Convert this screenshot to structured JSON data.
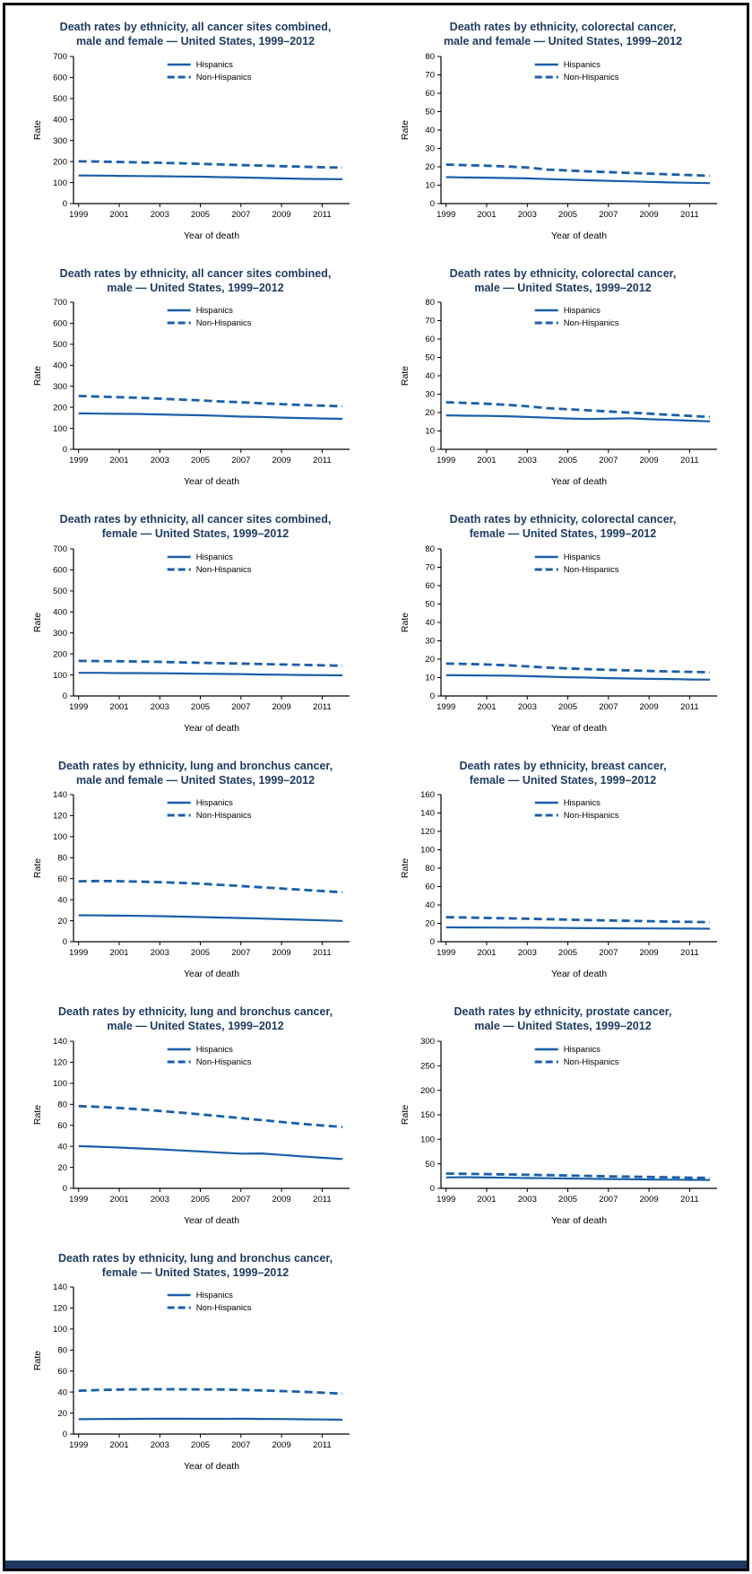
{
  "page": {
    "background": "#ffffff",
    "border_color": "#000000",
    "footer_bar_color": "#1f3864"
  },
  "style": {
    "line_color": "#1a5fa8",
    "title_color": "#1f3c61",
    "axis_color": "#000000",
    "tick_label_color": "#000000"
  },
  "legend": {
    "items": [
      {
        "label": "Hispanics",
        "style": "solid"
      },
      {
        "label": "Non-Hispanics",
        "style": "dashed"
      }
    ]
  },
  "axis_defaults": {
    "xlabel": "Year of death",
    "ylabel": "Rate",
    "years": [
      1999,
      2000,
      2001,
      2002,
      2003,
      2004,
      2005,
      2006,
      2007,
      2008,
      2009,
      2010,
      2011,
      2012
    ],
    "x_tick_labels": [
      "1999",
      "2001",
      "2003",
      "2005",
      "2007",
      "2009",
      "2011"
    ]
  },
  "chart_data": [
    {
      "type": "line",
      "title_line1": "Death rates by ethnicity, all cancer sites combined,",
      "title_line2": "male and female — United States, 1999–2012",
      "xlabel": "Year of death",
      "ylabel": "Rate",
      "ylim": [
        0,
        700
      ],
      "ytick_step": 100,
      "series": [
        {
          "name": "Hispanics",
          "style": "solid",
          "values": [
            134,
            133,
            132,
            131,
            130,
            129,
            128,
            126,
            124,
            122,
            120,
            118,
            117,
            116
          ]
        },
        {
          "name": "Non-Hispanics",
          "style": "dashed",
          "values": [
            201,
            200,
            198,
            196,
            194,
            192,
            189,
            186,
            183,
            181,
            178,
            176,
            173,
            171
          ]
        }
      ]
    },
    {
      "type": "line",
      "title_line1": "Death rates by ethnicity, colorectal cancer,",
      "title_line2": "male and female — United States, 1999–2012",
      "xlabel": "Year of death",
      "ylabel": "Rate",
      "ylim": [
        0,
        80
      ],
      "ytick_step": 10,
      "series": [
        {
          "name": "Hispanics",
          "style": "solid",
          "values": [
            14.4,
            14.2,
            14.1,
            13.9,
            13.7,
            13.3,
            13.0,
            12.7,
            12.4,
            12.1,
            11.8,
            11.5,
            11.3,
            11.1
          ]
        },
        {
          "name": "Non-Hispanics",
          "style": "dashed",
          "values": [
            21.2,
            20.9,
            20.6,
            20.2,
            19.6,
            18.5,
            18.0,
            17.5,
            17.1,
            16.7,
            16.3,
            15.9,
            15.5,
            15.1
          ]
        }
      ]
    },
    {
      "type": "line",
      "title_line1": "Death rates by ethnicity, all cancer sites combined,",
      "title_line2": "male — United States, 1999–2012",
      "xlabel": "Year of death",
      "ylabel": "Rate",
      "ylim": [
        0,
        700
      ],
      "ytick_step": 100,
      "series": [
        {
          "name": "Hispanics",
          "style": "solid",
          "values": [
            171,
            170,
            169,
            168,
            166,
            164,
            162,
            159,
            156,
            154,
            151,
            149,
            147,
            145
          ]
        },
        {
          "name": "Non-Hispanics",
          "style": "dashed",
          "values": [
            254,
            251,
            248,
            245,
            241,
            237,
            233,
            228,
            224,
            219,
            215,
            211,
            208,
            205
          ]
        }
      ]
    },
    {
      "type": "line",
      "title_line1": "Death rates by ethnicity, colorectal cancer,",
      "title_line2": "male — United States, 1999–2012",
      "xlabel": "Year of death",
      "ylabel": "Rate",
      "ylim": [
        0,
        80
      ],
      "ytick_step": 10,
      "series": [
        {
          "name": "Hispanics",
          "style": "solid",
          "values": [
            18.5,
            18.3,
            18.2,
            18.0,
            17.6,
            17.2,
            16.8,
            16.5,
            16.7,
            16.9,
            16.4,
            16.0,
            15.6,
            15.2
          ]
        },
        {
          "name": "Non-Hispanics",
          "style": "dashed",
          "values": [
            25.6,
            25.2,
            24.8,
            24.2,
            23.4,
            22.4,
            21.8,
            21.2,
            20.6,
            20.0,
            19.4,
            18.8,
            18.2,
            17.6
          ]
        }
      ]
    },
    {
      "type": "line",
      "title_line1": "Death rates by ethnicity, all cancer sites combined,",
      "title_line2": "female — United States, 1999–2012",
      "xlabel": "Year of death",
      "ylabel": "Rate",
      "ylim": [
        0,
        700
      ],
      "ytick_step": 100,
      "series": [
        {
          "name": "Hispanics",
          "style": "solid",
          "values": [
            110,
            110,
            109,
            109,
            108,
            107,
            106,
            105,
            104,
            102,
            101,
            100,
            99,
            98
          ]
        },
        {
          "name": "Non-Hispanics",
          "style": "dashed",
          "values": [
            167,
            166,
            165,
            164,
            162,
            160,
            158,
            156,
            154,
            152,
            150,
            148,
            146,
            144
          ]
        }
      ]
    },
    {
      "type": "line",
      "title_line1": "Death rates by ethnicity, colorectal cancer,",
      "title_line2": "female — United States, 1999–2012",
      "xlabel": "Year of death",
      "ylabel": "Rate",
      "ylim": [
        0,
        80
      ],
      "ytick_step": 10,
      "series": [
        {
          "name": "Hispanics",
          "style": "solid",
          "values": [
            11.3,
            11.2,
            11.1,
            11.0,
            10.8,
            10.5,
            10.2,
            10.0,
            9.7,
            9.5,
            9.3,
            9.2,
            9.0,
            8.9
          ]
        },
        {
          "name": "Non-Hispanics",
          "style": "dashed",
          "values": [
            17.6,
            17.4,
            17.1,
            16.7,
            16.1,
            15.4,
            15.0,
            14.6,
            14.2,
            13.9,
            13.6,
            13.3,
            13.1,
            12.9
          ]
        }
      ]
    },
    {
      "type": "line",
      "title_line1": "Death rates by ethnicity, lung and bronchus cancer,",
      "title_line2": "male and female — United States, 1999–2012",
      "xlabel": "Year of death",
      "ylabel": "Rate",
      "ylim": [
        0,
        140
      ],
      "ytick_step": 20,
      "series": [
        {
          "name": "Hispanics",
          "style": "solid",
          "values": [
            25.2,
            25.0,
            24.8,
            24.6,
            24.3,
            23.9,
            23.5,
            23.0,
            22.5,
            22.0,
            21.4,
            20.9,
            20.3,
            19.8
          ]
        },
        {
          "name": "Non-Hispanics",
          "style": "dashed",
          "values": [
            57.5,
            57.8,
            57.6,
            57.2,
            56.7,
            56.0,
            55.2,
            54.1,
            53.0,
            51.8,
            50.6,
            49.4,
            48.2,
            47.0
          ]
        }
      ]
    },
    {
      "type": "line",
      "title_line1": "Death rates by ethnicity, breast cancer,",
      "title_line2": "female — United States, 1999–2012",
      "xlabel": "Year of death",
      "ylabel": "Rate",
      "ylim": [
        0,
        160
      ],
      "ytick_step": 20,
      "series": [
        {
          "name": "Hispanics",
          "style": "solid",
          "values": [
            15.6,
            15.5,
            15.4,
            15.3,
            15.3,
            15.1,
            14.9,
            14.7,
            14.6,
            14.5,
            14.4,
            14.3,
            14.2,
            14.1
          ]
        },
        {
          "name": "Non-Hispanics",
          "style": "dashed",
          "values": [
            26.6,
            26.3,
            25.9,
            25.5,
            25.0,
            24.5,
            24.0,
            23.5,
            23.1,
            22.7,
            22.3,
            21.9,
            21.6,
            21.3
          ]
        }
      ]
    },
    {
      "type": "line",
      "title_line1": "Death rates by ethnicity, lung and bronchus cancer,",
      "title_line2": "male — United States, 1999–2012",
      "xlabel": "Year of death",
      "ylabel": "Rate",
      "ylim": [
        0,
        140
      ],
      "ytick_step": 20,
      "series": [
        {
          "name": "Hispanics",
          "style": "solid",
          "values": [
            40.2,
            39.6,
            38.8,
            38.0,
            37.1,
            36.1,
            35.1,
            34.0,
            33.0,
            33.2,
            31.8,
            30.4,
            29.1,
            27.9
          ]
        },
        {
          "name": "Non-Hispanics",
          "style": "dashed",
          "values": [
            78.3,
            77.6,
            76.5,
            75.2,
            73.7,
            72.1,
            70.4,
            68.6,
            66.8,
            65.0,
            63.2,
            61.4,
            59.8,
            58.4
          ]
        }
      ]
    },
    {
      "type": "line",
      "title_line1": "Death rates by ethnicity, prostate cancer,",
      "title_line2": "male — United States, 1999–2012",
      "xlabel": "Year of death",
      "ylabel": "Rate",
      "ylim": [
        0,
        300
      ],
      "ytick_step": 50,
      "series": [
        {
          "name": "Hispanics",
          "style": "solid",
          "values": [
            22.3,
            22.6,
            22.1,
            21.6,
            21.1,
            20.6,
            20.1,
            19.6,
            19.1,
            18.6,
            18.2,
            17.8,
            17.4,
            17.1
          ]
        },
        {
          "name": "Non-Hispanics",
          "style": "dashed",
          "values": [
            30.2,
            29.7,
            29.1,
            28.4,
            27.7,
            27.0,
            26.2,
            25.4,
            24.6,
            23.9,
            23.2,
            22.5,
            21.8,
            21.2
          ]
        }
      ]
    },
    {
      "type": "line",
      "title_line1": "Death rates by ethnicity, lung and bronchus cancer,",
      "title_line2": "female — United States, 1999–2012",
      "xlabel": "Year of death",
      "ylabel": "Rate",
      "ylim": [
        0,
        140
      ],
      "ytick_step": 20,
      "series": [
        {
          "name": "Hispanics",
          "style": "solid",
          "values": [
            14.2,
            14.3,
            14.4,
            14.5,
            14.6,
            14.6,
            14.5,
            14.5,
            14.6,
            14.4,
            14.3,
            14.1,
            13.9,
            13.7
          ]
        },
        {
          "name": "Non-Hispanics",
          "style": "dashed",
          "values": [
            41.2,
            41.9,
            42.3,
            42.6,
            42.7,
            42.6,
            42.5,
            42.4,
            42.1,
            41.6,
            41.0,
            40.3,
            39.4,
            38.4
          ]
        }
      ]
    }
  ]
}
